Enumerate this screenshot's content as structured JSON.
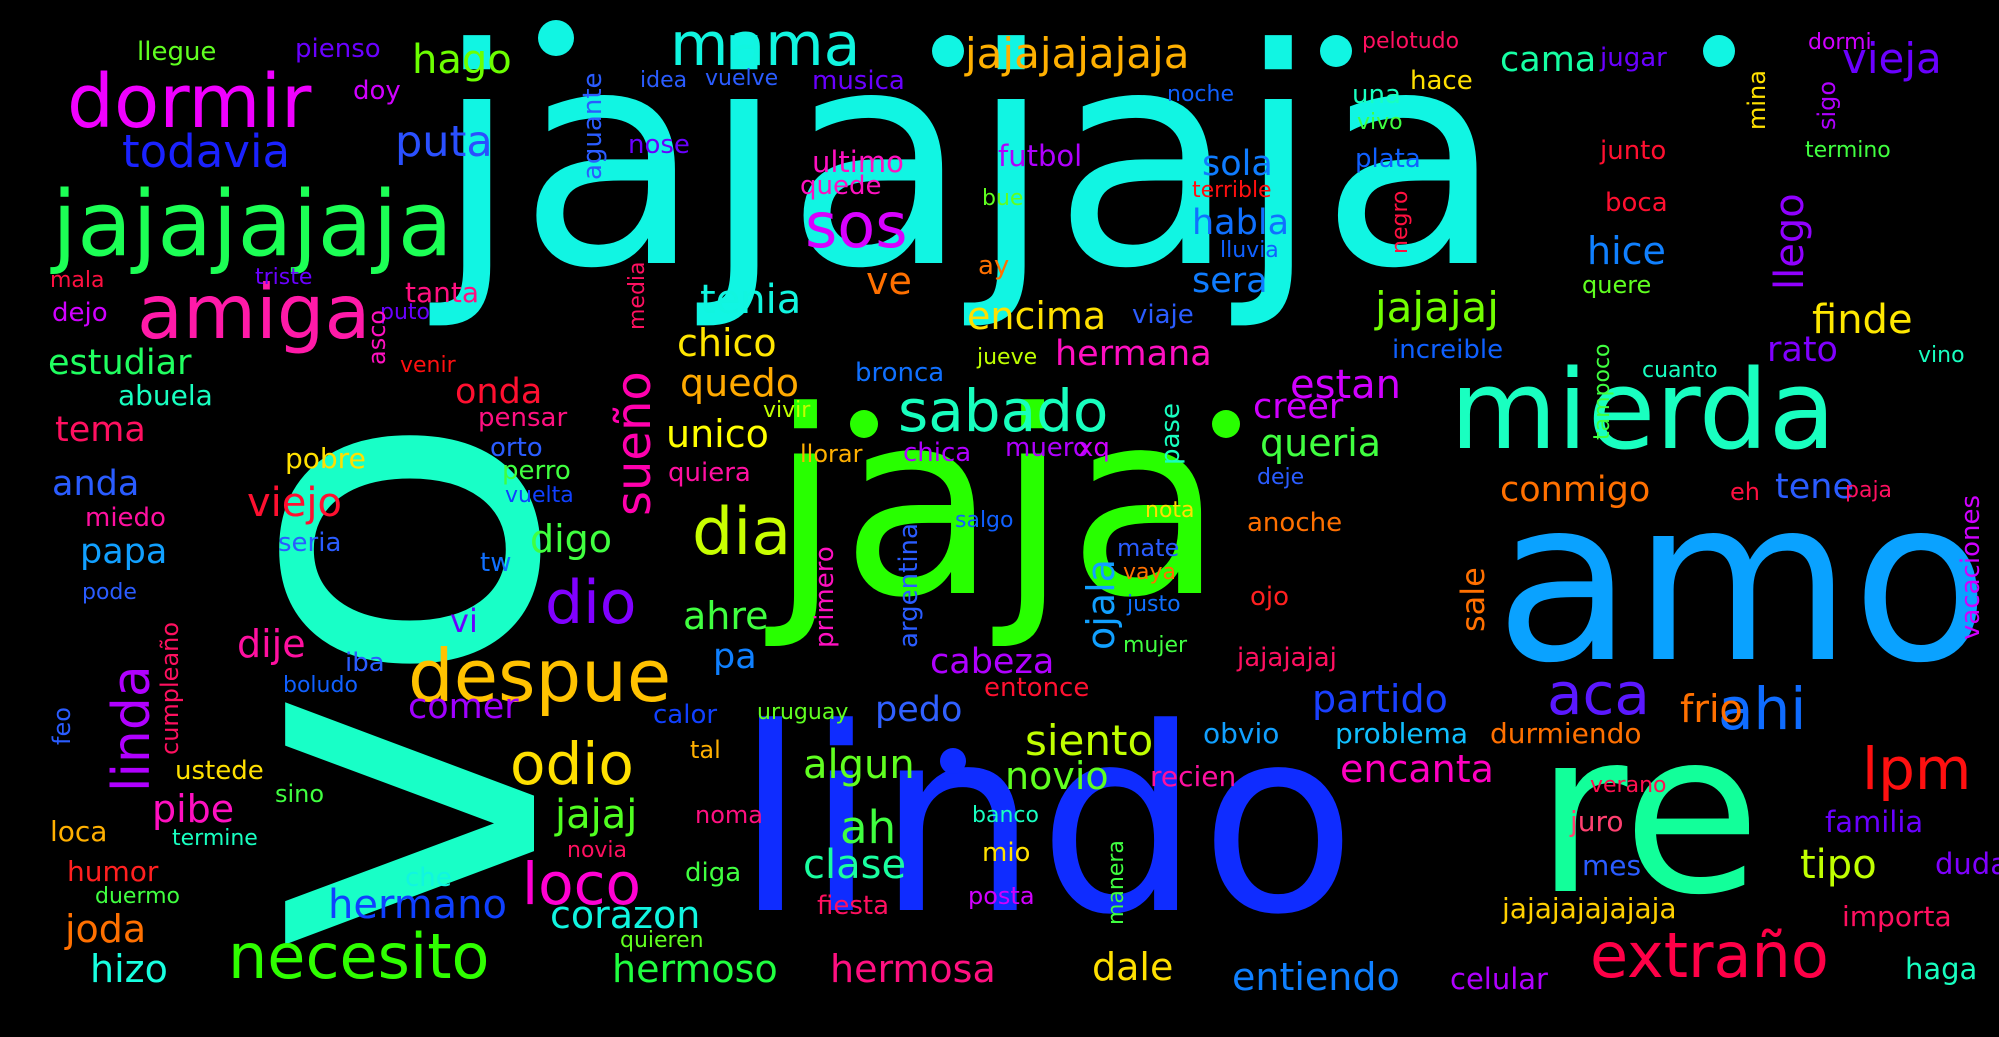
{
  "cloud": {
    "background": "#000000",
    "words": [
      {
        "text": "vo",
        "color": "#18ffc7"
      },
      {
        "text": "jajajaja",
        "color": "#11f5e3"
      },
      {
        "text": "jaja",
        "color": "#28ff00"
      },
      {
        "text": "lindo",
        "color": "#0f2cff"
      },
      {
        "text": "amo",
        "color": "#0aa2ff"
      },
      {
        "text": "re",
        "color": "#12ff9a"
      },
      {
        "text": "mierda",
        "color": "#19ffc0"
      },
      {
        "text": "jajajajaja",
        "color": "#1cff55"
      },
      {
        "text": "dormir",
        "color": "#f000ff"
      },
      {
        "text": "amiga",
        "color": "#ff1aa8"
      },
      {
        "text": "despue",
        "color": "#ffc200"
      },
      {
        "text": "necesito",
        "color": "#2fff00"
      },
      {
        "text": "extraño",
        "color": "#ff0047"
      },
      {
        "text": "sabado",
        "color": "#18ffbe"
      },
      {
        "text": "dia",
        "color": "#c8ff00"
      },
      {
        "text": "mama",
        "color": "#11f5e0"
      },
      {
        "text": "jajajajajaja",
        "color": "#ffb000"
      },
      {
        "text": "sos",
        "color": "#d800ff"
      },
      {
        "text": "odio",
        "color": "#ffe000"
      },
      {
        "text": "loco",
        "color": "#ff00d2"
      },
      {
        "text": "lpm",
        "color": "#ff1010"
      },
      {
        "text": "dio",
        "color": "#8000ff"
      },
      {
        "text": "aca",
        "color": "#5a18ff"
      },
      {
        "text": "ahi",
        "color": "#0f6cff"
      },
      {
        "text": "linda",
        "color": "#b000ff"
      },
      {
        "text": "sueño",
        "color": "#ff00ad"
      },
      {
        "text": "todavia",
        "color": "#1a22ff"
      },
      {
        "text": "puta",
        "color": "#2a50ff"
      },
      {
        "text": "hago",
        "color": "#6cff00"
      },
      {
        "text": "cama",
        "color": "#16ffa4"
      },
      {
        "text": "vieja",
        "color": "#6a00ff"
      },
      {
        "text": "llego",
        "color": "#9000ff"
      },
      {
        "text": "finde",
        "color": "#ffe800"
      },
      {
        "text": "tipo",
        "color": "#c0ff00"
      },
      {
        "text": "jajajaj",
        "color": "#72ff00"
      },
      {
        "text": "encima",
        "color": "#ffe000"
      },
      {
        "text": "tenia",
        "color": "#11f5e0"
      },
      {
        "text": "chico",
        "color": "#ffe600"
      },
      {
        "text": "quedo",
        "color": "#ffaa00"
      },
      {
        "text": "unico",
        "color": "#ffff00"
      },
      {
        "text": "hermana",
        "color": "#ff10c0"
      },
      {
        "text": "estan",
        "color": "#d000ff"
      },
      {
        "text": "creer",
        "color": "#d000ff"
      },
      {
        "text": "queria",
        "color": "#40ff40"
      },
      {
        "text": "conmigo",
        "color": "#ff7000"
      },
      {
        "text": "tene",
        "color": "#2a5cff"
      },
      {
        "text": "rato",
        "color": "#8000ff"
      },
      {
        "text": "sola",
        "color": "#0f7cff"
      },
      {
        "text": "habla",
        "color": "#0f70ff"
      },
      {
        "text": "sera",
        "color": "#0f7cff"
      },
      {
        "text": "hice",
        "color": "#1080ff"
      },
      {
        "text": "partido",
        "color": "#1a40ff"
      },
      {
        "text": "siento",
        "color": "#c0ff00"
      },
      {
        "text": "novio",
        "color": "#60ff20"
      },
      {
        "text": "algun",
        "color": "#60ff20"
      },
      {
        "text": "encanta",
        "color": "#ff00c0"
      },
      {
        "text": "frio",
        "color": "#ff7000"
      },
      {
        "text": "ah",
        "color": "#40ff40"
      },
      {
        "text": "clase",
        "color": "#1affa0"
      },
      {
        "text": "jajaj",
        "color": "#50ff20"
      },
      {
        "text": "hermano",
        "color": "#0f40ff"
      },
      {
        "text": "corazon",
        "color": "#11f5e0"
      },
      {
        "text": "hermoso",
        "color": "#20ff40"
      },
      {
        "text": "hermosa",
        "color": "#ff1080"
      },
      {
        "text": "dale",
        "color": "#ffe000"
      },
      {
        "text": "entiendo",
        "color": "#0f80ff"
      },
      {
        "text": "celular",
        "color": "#b000ff"
      },
      {
        "text": "haga",
        "color": "#18ffc0"
      },
      {
        "text": "jajajajajajaja",
        "color": "#ffd000"
      },
      {
        "text": "importa",
        "color": "#ff1060"
      },
      {
        "text": "familia",
        "color": "#6a00ff"
      },
      {
        "text": "duda",
        "color": "#8000ff"
      },
      {
        "text": "mes",
        "color": "#2a5cff"
      },
      {
        "text": "juro",
        "color": "#ff4070"
      },
      {
        "text": "verano",
        "color": "#ff1050"
      },
      {
        "text": "problema",
        "color": "#11c0ff"
      },
      {
        "text": "durmiendo",
        "color": "#ff7000"
      },
      {
        "text": "recien",
        "color": "#ff10a0"
      },
      {
        "text": "obvio",
        "color": "#11a0ff"
      },
      {
        "text": "pedo",
        "color": "#3060ff"
      },
      {
        "text": "cabeza",
        "color": "#b000ff"
      },
      {
        "text": "entonce",
        "color": "#ff1030"
      },
      {
        "text": "jajajajaj",
        "color": "#ff1060"
      },
      {
        "text": "mujer",
        "color": "#40ff40"
      },
      {
        "text": "justo",
        "color": "#1070ff"
      },
      {
        "text": "vaya",
        "color": "#ff7000"
      },
      {
        "text": "mate",
        "color": "#2a5cff"
      },
      {
        "text": "ojala",
        "color": "#11a0ff"
      },
      {
        "text": "ojo",
        "color": "#ff2020"
      },
      {
        "text": "sale",
        "color": "#ff7000"
      },
      {
        "text": "anoche",
        "color": "#ff7000"
      },
      {
        "text": "nota",
        "color": "#ffe000"
      },
      {
        "text": "deje",
        "color": "#2a5cff"
      },
      {
        "text": "eh",
        "color": "#ff1040"
      },
      {
        "text": "paja",
        "color": "#ff1060"
      },
      {
        "text": "vacaciones",
        "color": "#d000ff"
      },
      {
        "text": "vino",
        "color": "#18ffc0"
      },
      {
        "text": "cuanto",
        "color": "#18ffc0"
      },
      {
        "text": "tampoco",
        "color": "#40ff40"
      },
      {
        "text": "increible",
        "color": "#0f60ff"
      },
      {
        "text": "quere",
        "color": "#60ff20"
      },
      {
        "text": "boca",
        "color": "#ff1030"
      },
      {
        "text": "junto",
        "color": "#ff1030"
      },
      {
        "text": "termino",
        "color": "#40ff40"
      },
      {
        "text": "sigo",
        "color": "#b000ff"
      },
      {
        "text": "mina",
        "color": "#ffe000"
      },
      {
        "text": "dormi",
        "color": "#d000ff"
      },
      {
        "text": "jugar",
        "color": "#6a00ff"
      },
      {
        "text": "pelotudo",
        "color": "#ff1060"
      },
      {
        "text": "hace",
        "color": "#ffe000"
      },
      {
        "text": "una",
        "color": "#18ffc0"
      },
      {
        "text": "vivo",
        "color": "#40ff40"
      },
      {
        "text": "plata",
        "color": "#1060ff"
      },
      {
        "text": "negro",
        "color": "#ff1040"
      },
      {
        "text": "terrible",
        "color": "#ff1010"
      },
      {
        "text": "lluvia",
        "color": "#0f60ff"
      },
      {
        "text": "noche",
        "color": "#1060ff"
      },
      {
        "text": "futbol",
        "color": "#b000ff"
      },
      {
        "text": "bue",
        "color": "#60ff20"
      },
      {
        "text": "ay",
        "color": "#ff7000"
      },
      {
        "text": "ultimo",
        "color": "#ff10c0"
      },
      {
        "text": "quede",
        "color": "#ff10c0"
      },
      {
        "text": "ve",
        "color": "#ff7000"
      },
      {
        "text": "viaje",
        "color": "#2a5cff"
      },
      {
        "text": "jueve",
        "color": "#c0ff00"
      },
      {
        "text": "bronca",
        "color": "#1070ff"
      },
      {
        "text": "vivir",
        "color": "#c0ff00"
      },
      {
        "text": "pase",
        "color": "#18ffc0"
      },
      {
        "text": "muero",
        "color": "#b000ff"
      },
      {
        "text": "xq",
        "color": "#d000ff"
      },
      {
        "text": "chica",
        "color": "#b000ff"
      },
      {
        "text": "llorar",
        "color": "#ffb000"
      },
      {
        "text": "salgo",
        "color": "#1060ff"
      },
      {
        "text": "argentina",
        "color": "#2a5cff"
      },
      {
        "text": "primero",
        "color": "#ff10c0"
      },
      {
        "text": "musica",
        "color": "#6a00ff"
      },
      {
        "text": "idea",
        "color": "#2a5cff"
      },
      {
        "text": "vuelve",
        "color": "#2a5cff"
      },
      {
        "text": "nose",
        "color": "#6a00ff"
      },
      {
        "text": "aguante",
        "color": "#2a5cff"
      },
      {
        "text": "media",
        "color": "#ff1060"
      },
      {
        "text": "quiera",
        "color": "#ff10a0"
      },
      {
        "text": "uruguay",
        "color": "#60ff20"
      },
      {
        "text": "calor",
        "color": "#1040ff"
      },
      {
        "text": "tal",
        "color": "#ffb000"
      },
      {
        "text": "noma",
        "color": "#ff1080"
      },
      {
        "text": "banco",
        "color": "#18ffc0"
      },
      {
        "text": "mio",
        "color": "#ffe000"
      },
      {
        "text": "novia",
        "color": "#ff1060"
      },
      {
        "text": "diga",
        "color": "#40ff40"
      },
      {
        "text": "fiesta",
        "color": "#ff1060"
      },
      {
        "text": "posta",
        "color": "#d000ff"
      },
      {
        "text": "manera",
        "color": "#40ff40"
      },
      {
        "text": "quieren",
        "color": "#60ff20"
      },
      {
        "text": "pa",
        "color": "#0f80ff"
      },
      {
        "text": "ahre",
        "color": "#40ff40"
      },
      {
        "text": "digo",
        "color": "#40ff40"
      },
      {
        "text": "vi",
        "color": "#6a00ff"
      },
      {
        "text": "comer",
        "color": "#a000ff"
      },
      {
        "text": "dije",
        "color": "#ff10a0"
      },
      {
        "text": "pibe",
        "color": "#ff10c0"
      },
      {
        "text": "viejo",
        "color": "#ff1030"
      },
      {
        "text": "onda",
        "color": "#ff1030"
      },
      {
        "text": "papa",
        "color": "#11a0ff"
      },
      {
        "text": "anda",
        "color": "#2a5cff"
      },
      {
        "text": "tema",
        "color": "#ff1060"
      },
      {
        "text": "estudiar",
        "color": "#20ff60"
      },
      {
        "text": "abuela",
        "color": "#18ffc0"
      },
      {
        "text": "dejo",
        "color": "#d000ff"
      },
      {
        "text": "mala",
        "color": "#ff1040"
      },
      {
        "text": "triste",
        "color": "#6a00ff"
      },
      {
        "text": "tanta",
        "color": "#ff1080"
      },
      {
        "text": "puto",
        "color": "#6a00ff"
      },
      {
        "text": "asco",
        "color": "#ff10c0"
      },
      {
        "text": "venir",
        "color": "#ff1010"
      },
      {
        "text": "pensar",
        "color": "#ff1080"
      },
      {
        "text": "orto",
        "color": "#2a5cff"
      },
      {
        "text": "perro",
        "color": "#40ff40"
      },
      {
        "text": "vuelta",
        "color": "#1040ff"
      },
      {
        "text": "pobre",
        "color": "#ffe000"
      },
      {
        "text": "seria",
        "color": "#2a5cff"
      },
      {
        "text": "miedo",
        "color": "#ff10a0"
      },
      {
        "text": "pode",
        "color": "#2a5cff"
      },
      {
        "text": "tw",
        "color": "#1070ff"
      },
      {
        "text": "iba",
        "color": "#2a5cff"
      },
      {
        "text": "boludo",
        "color": "#1060ff"
      },
      {
        "text": "cumpleaño",
        "color": "#ff1060"
      },
      {
        "text": "feo",
        "color": "#2a5cff"
      },
      {
        "text": "ustede",
        "color": "#ffe000"
      },
      {
        "text": "sino",
        "color": "#40ff40"
      },
      {
        "text": "loca",
        "color": "#ffb000"
      },
      {
        "text": "termine",
        "color": "#18ffc0"
      },
      {
        "text": "humor",
        "color": "#ff2020"
      },
      {
        "text": "duermo",
        "color": "#40ff40"
      },
      {
        "text": "joda",
        "color": "#ff7000"
      },
      {
        "text": "che",
        "color": "#11f5e0"
      },
      {
        "text": "hizo",
        "color": "#18ffe0"
      },
      {
        "text": "llegue",
        "color": "#60ff20"
      },
      {
        "text": "pienso",
        "color": "#6a00ff"
      },
      {
        "text": "doy",
        "color": "#d000ff"
      }
    ]
  }
}
